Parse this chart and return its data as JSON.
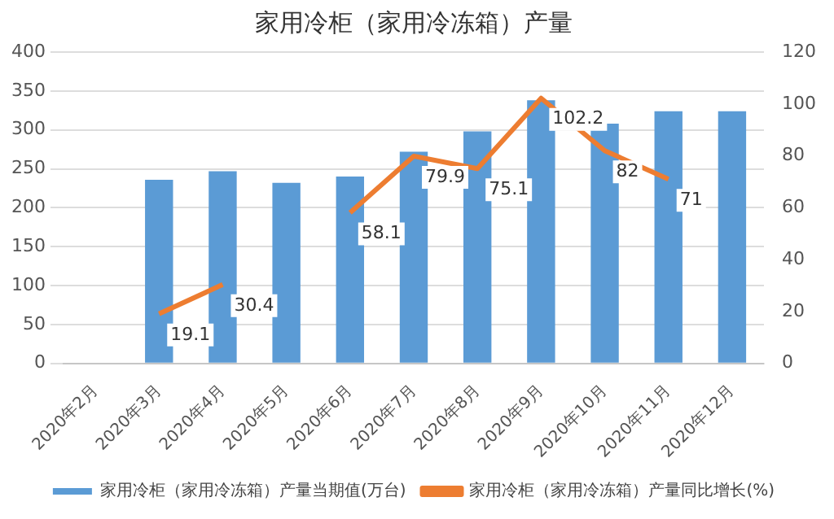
{
  "chart_data": {
    "type": "bar",
    "title": "家用冷柜（家用冷冻箱）产量",
    "categories": [
      "2020年2月",
      "2020年3月",
      "2020年4月",
      "2020年5月",
      "2020年6月",
      "2020年7月",
      "2020年8月",
      "2020年9月",
      "2020年10月",
      "2020年11月",
      "2020年12月"
    ],
    "series": [
      {
        "name": "家用冷柜（家用冷冻箱）产量当期值(万台)",
        "color": "#5b9bd5",
        "values": [
          null,
          236,
          247,
          232,
          240,
          272,
          298,
          338,
          308,
          324,
          324
        ]
      },
      {
        "name": "家用冷柜（家用冷冻箱）产量同比增长(%)",
        "type": "line",
        "axis": "y2",
        "color": "#ed7d31",
        "values": [
          null,
          19.1,
          30.4,
          null,
          58.1,
          79.9,
          75.1,
          102.2,
          82,
          71,
          null
        ],
        "value_labels": [
          null,
          "19.1",
          "30.4",
          null,
          "58.1",
          "79.9",
          "75.1",
          "102.2",
          "82",
          "71",
          null
        ]
      }
    ],
    "ylim": [
      0,
      400
    ],
    "yticks": [
      0,
      50,
      100,
      150,
      200,
      250,
      300,
      350,
      400
    ],
    "y2lim": [
      0,
      120
    ],
    "y2ticks": [
      0,
      20,
      40,
      60,
      80,
      100,
      120
    ],
    "grid": "y",
    "legend": "bottom"
  }
}
